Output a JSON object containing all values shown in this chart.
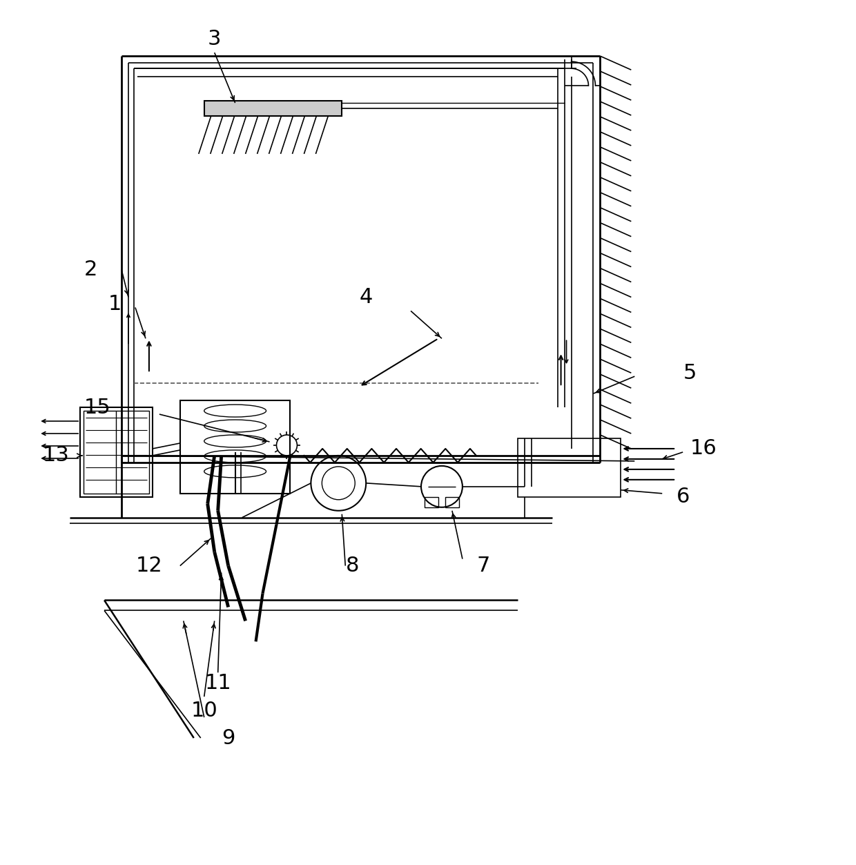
{
  "bg_color": "#ffffff",
  "lc": "#000000",
  "figsize": [
    12.4,
    12.53
  ],
  "dpi": 100
}
